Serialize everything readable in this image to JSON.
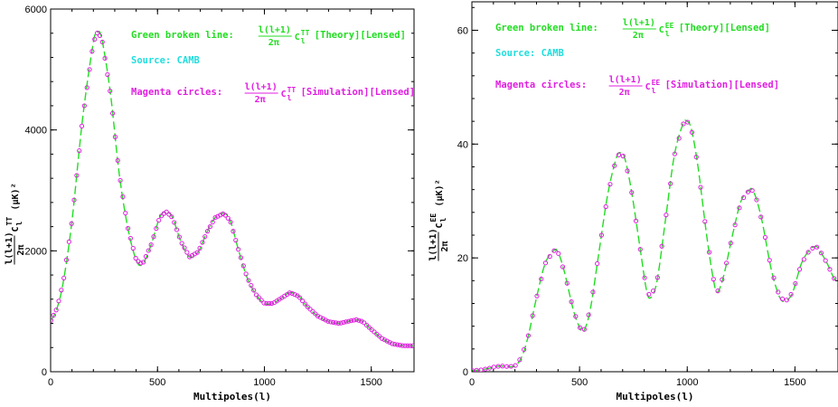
{
  "colors": {
    "theory": "#22dd22",
    "simulation": "#e01ee0",
    "source": "#22dddd",
    "axis": "#000000"
  },
  "chart_data": [
    {
      "type": "line",
      "xlabel": "Multipoles(l)",
      "ylabel": "l(l+1)/2π C_l^TT (μK)²",
      "xlim": [
        0,
        1700
      ],
      "ylim": [
        0,
        6000
      ],
      "xticks": [
        0,
        500,
        1000,
        1500
      ],
      "yticks": [
        0,
        2000,
        4000,
        6000
      ],
      "legend": {
        "theory_prefix": "Green broken line:",
        "theory_suffix": "[Theory][Lensed]",
        "source": "Source: CAMB",
        "sim_prefix": "Magenta circles:",
        "sim_suffix": "[Simulation][Lensed]",
        "frac_num": "l(l+1)",
        "frac_den": "2π",
        "cl_symbol": "C",
        "cl_sub": "l",
        "cl_sup": "TT"
      },
      "series": [
        {
          "name": "Green broken line",
          "style": "dashed",
          "x": [
            2,
            30,
            60,
            100,
            150,
            200,
            220,
            240,
            280,
            320,
            360,
            400,
            430,
            470,
            510,
            540,
            570,
            610,
            650,
            690,
            730,
            770,
            810,
            840,
            880,
            920,
            960,
            1000,
            1040,
            1080,
            1120,
            1160,
            1200,
            1250,
            1300,
            1350,
            1400,
            1430,
            1460,
            1500,
            1550,
            1600,
            1650,
            1700
          ],
          "y": [
            850,
            1050,
            1500,
            2500,
            4200,
            5450,
            5620,
            5500,
            4600,
            3300,
            2400,
            1850,
            1780,
            2100,
            2550,
            2650,
            2550,
            2150,
            1900,
            1980,
            2300,
            2550,
            2620,
            2500,
            2000,
            1550,
            1280,
            1130,
            1130,
            1220,
            1310,
            1250,
            1080,
            920,
            830,
            800,
            840,
            860,
            830,
            700,
            550,
            460,
            430,
            430
          ]
        },
        {
          "name": "Magenta circles",
          "style": "markers",
          "step": 12
        }
      ]
    },
    {
      "type": "line",
      "xlabel": "Multipoles(l)",
      "ylabel": "l(l+1)/2π C_l^EE (μK)²",
      "xlim": [
        0,
        1700
      ],
      "ylim": [
        0,
        65
      ],
      "xticks": [
        0,
        500,
        1000,
        1500
      ],
      "yticks": [
        0,
        20,
        40,
        60
      ],
      "legend": {
        "theory_prefix": "Green broken line:",
        "theory_suffix": "[Theory][Lensed]",
        "source": "Source: CAMB",
        "sim_prefix": "Magenta circles:",
        "sim_suffix": "[Simulation][Lensed]",
        "frac_num": "l(l+1)",
        "frac_den": "2π",
        "cl_symbol": "C",
        "cl_sub": "l",
        "cl_sup": "EE"
      },
      "series": [
        {
          "name": "Green broken line",
          "style": "dashed",
          "x": [
            2,
            40,
            80,
            110,
            140,
            170,
            200,
            230,
            260,
            300,
            340,
            380,
            400,
            430,
            470,
            500,
            520,
            550,
            590,
            630,
            670,
            690,
            710,
            740,
            780,
            810,
            830,
            860,
            900,
            940,
            980,
            1000,
            1020,
            1050,
            1090,
            1120,
            1140,
            1170,
            1210,
            1250,
            1290,
            1300,
            1320,
            1350,
            1390,
            1430,
            1460,
            1490,
            1530,
            1570,
            1600,
            1620,
            1650,
            1680,
            1700
          ],
          "y": [
            0.2,
            0.3,
            0.6,
            0.9,
            1.0,
            0.9,
            1.0,
            2.5,
            6,
            13,
            19,
            21.3,
            21,
            17.5,
            11,
            7.8,
            7.2,
            11,
            21,
            31,
            37.5,
            38.5,
            37.5,
            32,
            22,
            14.5,
            13,
            16,
            27,
            38,
            43.5,
            44,
            42.5,
            36,
            24,
            16.5,
            14,
            17,
            24,
            30,
            32,
            32,
            30.5,
            26,
            18,
            13,
            12.5,
            14,
            19,
            21.5,
            22,
            21,
            19,
            16.5,
            15.5
          ]
        },
        {
          "name": "Magenta circles",
          "style": "markers",
          "step": 20
        }
      ]
    }
  ]
}
